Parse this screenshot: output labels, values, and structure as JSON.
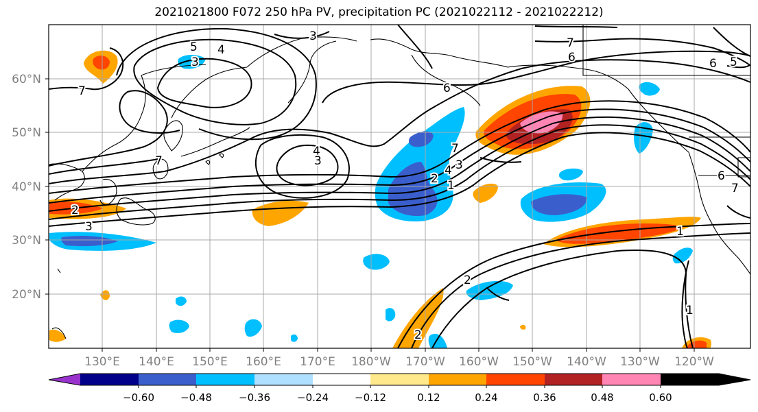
{
  "title": "2021021800 F072 250 hPa PV, precipitation PC (2021022112 - 2021022212)",
  "map": {
    "lat_labels": [
      "60°N",
      "50°N",
      "40°N",
      "30°N",
      "20°N"
    ],
    "lon_labels": [
      "130°E",
      "140°E",
      "150°E",
      "160°E",
      "170°E",
      "180°W",
      "170°W",
      "160°W",
      "150°W",
      "140°W",
      "130°W",
      "120°W"
    ],
    "contour_labels": [
      "5",
      "4",
      "3",
      "3",
      "7",
      "7",
      "6",
      "6",
      "6",
      "5",
      "7",
      "4",
      "3",
      "7",
      "2",
      "4",
      "3",
      "1",
      "2",
      "2",
      "3",
      "1",
      "2",
      "1",
      "6",
      "7"
    ]
  },
  "colorbar": {
    "tick_labels": [
      "−0.60",
      "−0.48",
      "−0.36",
      "−0.24",
      "−0.12",
      "0.12",
      "0.24",
      "0.36",
      "0.48",
      "0.60"
    ],
    "colors": [
      "#9932cc",
      "#00008b",
      "#3a5fcd",
      "#00bfff",
      "#b0e0ff",
      "#ffffff",
      "#ffe98a",
      "#ffa500",
      "#ff4500",
      "#b22222",
      "#ff85b5"
    ]
  }
}
